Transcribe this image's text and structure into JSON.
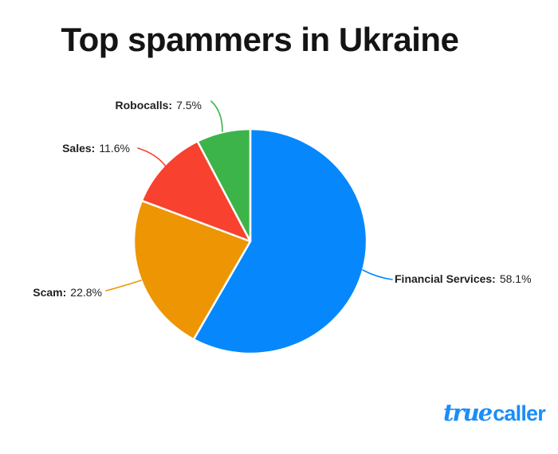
{
  "chart_data": {
    "type": "pie",
    "title": "Top spammers in Ukraine",
    "categories": [
      "Financial Services",
      "Scam",
      "Sales",
      "Robocalls"
    ],
    "values": [
      58.1,
      22.8,
      11.6,
      7.5
    ],
    "unit": "%",
    "colors": [
      "#0688FC",
      "#EE9503",
      "#F8412F",
      "#3CB44A"
    ],
    "start_angle_deg": 0,
    "direction": "clockwise",
    "legend_position": "none",
    "label_style": "external-with-leader-lines",
    "slice_border_color": "#FFFFFF",
    "labels": [
      {
        "name": "Financial Services:",
        "value": "58.1%"
      },
      {
        "name": "Scam:",
        "value": "22.8%"
      },
      {
        "name": "Sales:",
        "value": "11.6%"
      },
      {
        "name": "Robocalls:",
        "value": "7.5%"
      }
    ]
  },
  "branding": {
    "logo_text_script": "true",
    "logo_text_plain": "caller",
    "logo_color": "#1B8DF8"
  }
}
